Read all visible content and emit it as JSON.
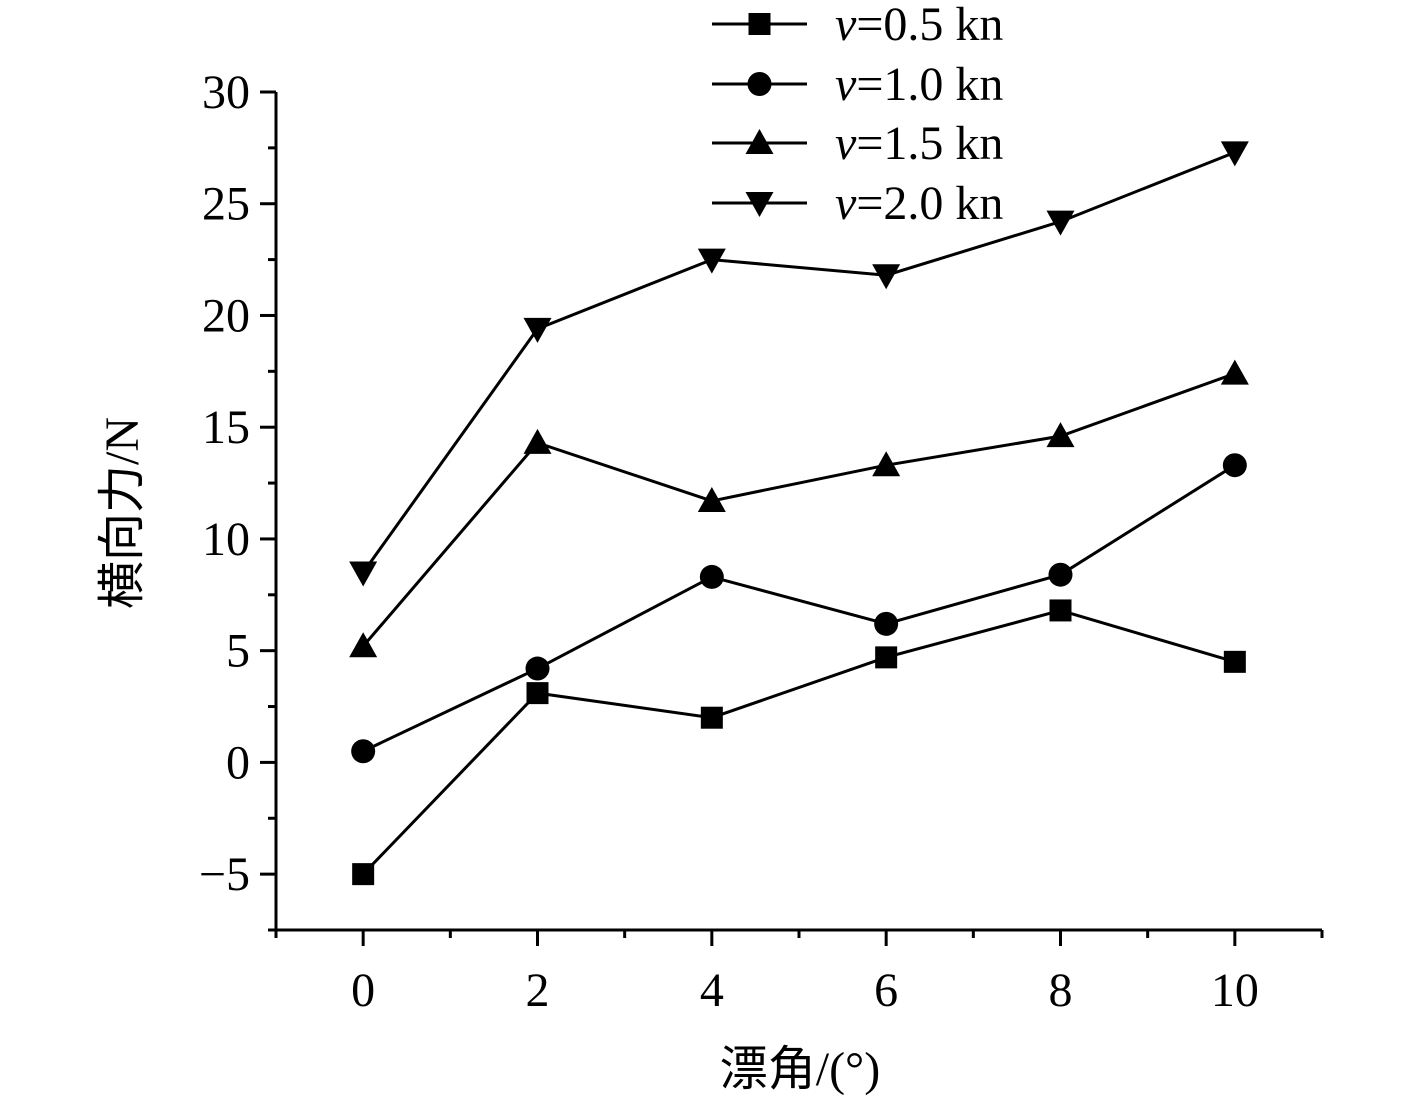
{
  "chart_data": {
    "type": "line",
    "xlabel": "漂角/(°)",
    "ylabel": "横向力/N",
    "xlim": [
      -1,
      11
    ],
    "ylim": [
      -7.5,
      30
    ],
    "xticks": [
      0,
      2,
      4,
      6,
      8,
      10
    ],
    "yticks": [
      -5,
      0,
      5,
      10,
      15,
      20,
      25,
      30
    ],
    "xtick_labels": [
      "0",
      "2",
      "4",
      "6",
      "8",
      "10"
    ],
    "ytick_labels": [
      "−5",
      "0",
      "5",
      "10",
      "15",
      "20",
      "25",
      "30"
    ],
    "grid": false,
    "legend_position": "top-right",
    "x": [
      0,
      2,
      4,
      6,
      8,
      10
    ],
    "series": [
      {
        "name": "v=0.5 kn",
        "var": "v",
        "rest": "=0.5 kn",
        "marker": "square",
        "values": [
          -5.0,
          3.1,
          2.0,
          4.7,
          6.8,
          4.5
        ]
      },
      {
        "name": "v=1.0 kn",
        "var": "v",
        "rest": "=1.0 kn",
        "marker": "circle",
        "values": [
          0.5,
          4.2,
          8.3,
          6.2,
          8.4,
          13.3
        ]
      },
      {
        "name": "v=1.5 kn",
        "var": "v",
        "rest": "=1.5 kn",
        "marker": "triangle-up",
        "values": [
          5.2,
          14.3,
          11.7,
          13.3,
          14.6,
          17.4
        ]
      },
      {
        "name": "v=2.0 kn",
        "var": "v",
        "rest": "=2.0 kn",
        "marker": "triangle-down",
        "values": [
          8.5,
          19.4,
          22.5,
          21.8,
          24.2,
          27.3
        ]
      }
    ]
  }
}
